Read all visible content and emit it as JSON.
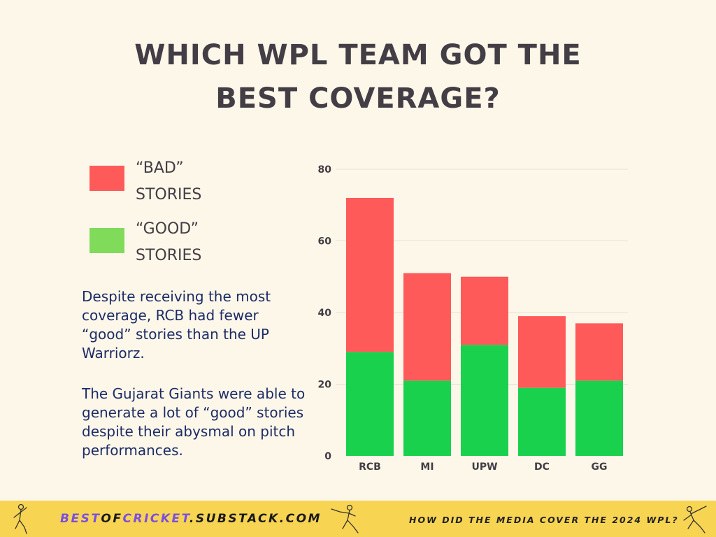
{
  "title": {
    "line1": "WHICH WPL TEAM GOT THE",
    "line2": "BEST COVERAGE?"
  },
  "legend": [
    {
      "line1": "“BAD”",
      "line2": "STORIES",
      "color": "#ff5a5a"
    },
    {
      "line1": "“GOOD”",
      "line2": "STORIES",
      "color": "#80db5a"
    }
  ],
  "description": {
    "para1": "Despite receiving the most coverage, RCB had fewer “good” stories than the UP Warriorz.",
    "para2": "The Gujarat Giants were able to generate a lot of “good” stories despite their abysmal on pitch performances."
  },
  "chart_data": {
    "type": "bar",
    "stacked": true,
    "categories": [
      "RCB",
      "MI",
      "UPW",
      "DC",
      "GG"
    ],
    "series": [
      {
        "name": "“GOOD” STORIES",
        "values": [
          29,
          21,
          31,
          19,
          21
        ],
        "color": "#1ad14e"
      },
      {
        "name": "“BAD” STORIES",
        "values": [
          43,
          30,
          19,
          20,
          16
        ],
        "color": "#ff5a5a"
      }
    ],
    "ylim": [
      0,
      80
    ],
    "yticks": [
      0,
      20,
      40,
      60,
      80
    ],
    "grid": true,
    "legend_position": "left"
  },
  "footer": {
    "site_part1": "BEST",
    "site_part2": "OF",
    "site_part3": "CRICKET",
    "site_part4": ".SUBSTACK.COM",
    "tagline": "HOW DID THE MEDIA COVER THE 2024 WPL?",
    "background_color": "#f8d453"
  }
}
